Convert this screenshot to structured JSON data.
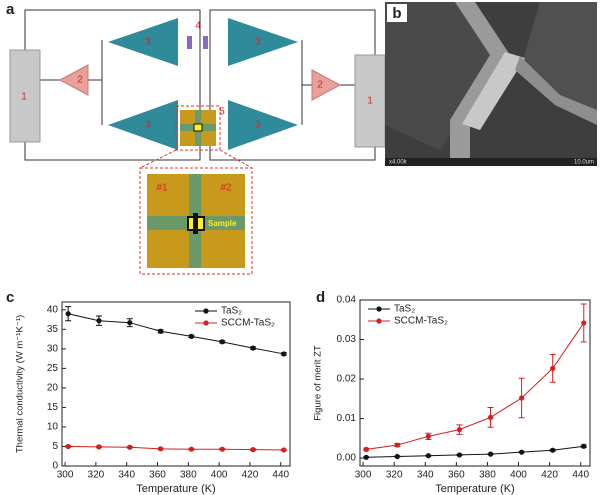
{
  "figure": {
    "panel_labels": [
      "a",
      "b",
      "c",
      "d"
    ],
    "diagram": {
      "labels": [
        "1",
        "2",
        "3",
        "4",
        "5",
        "#1",
        "#2",
        "Sample"
      ]
    },
    "micrograph": {
      "magnification": "x4.00k",
      "scale": "10.0um"
    }
  },
  "chart_data": [
    {
      "type": "line",
      "xlabel": "Temperature (K)",
      "ylabel": "Thermal conductivity (W m⁻¹K⁻¹)",
      "x": [
        302,
        322,
        342,
        362,
        382,
        402,
        422,
        442
      ],
      "xlim": [
        298,
        446
      ],
      "xticks": [
        300,
        320,
        340,
        360,
        380,
        400,
        420,
        440
      ],
      "ylim": [
        0,
        42
      ],
      "yticks": [
        0,
        5,
        10,
        15,
        20,
        25,
        30,
        35,
        40
      ],
      "legend": "upper right",
      "series": [
        {
          "name": "TaS₂",
          "color": "#111111",
          "values": [
            39.0,
            37.2,
            36.7,
            34.5,
            33.2,
            31.8,
            30.2,
            28.7
          ],
          "errors": [
            1.8,
            1.2,
            1.0,
            0.4,
            0.3,
            0.3,
            0.3,
            0.3
          ]
        },
        {
          "name": "SCCM-TaS₂",
          "color": "#d42020",
          "values": [
            5.0,
            4.9,
            4.8,
            4.4,
            4.3,
            4.3,
            4.2,
            4.1
          ],
          "errors": [
            0.2,
            0.2,
            0.2,
            0.2,
            0.2,
            0.2,
            0.2,
            0.2
          ]
        }
      ]
    },
    {
      "type": "line",
      "xlabel": "Temperature (K)",
      "ylabel": "Figure of merit ZT",
      "x": [
        302,
        322,
        342,
        362,
        382,
        402,
        422,
        442
      ],
      "xlim": [
        298,
        446
      ],
      "xticks": [
        300,
        320,
        340,
        360,
        380,
        400,
        420,
        440
      ],
      "ylim": [
        -0.002,
        0.04
      ],
      "yticks": [
        {
          "value": 0,
          "label": "0.00"
        },
        0.01,
        0.02,
        0.03,
        0.04
      ],
      "legend": "upper left",
      "series": [
        {
          "name": "TaS₂",
          "color": "#111111",
          "values": [
            0.0002,
            0.0004,
            0.0006,
            0.0008,
            0.001,
            0.0015,
            0.002,
            0.003
          ],
          "errors": [
            0.0001,
            0.0001,
            0.0001,
            0.0001,
            0.0001,
            0.0001,
            0.0002,
            0.0003
          ]
        },
        {
          "name": "SCCM-TaS₂",
          "color": "#d42020",
          "values": [
            0.0022,
            0.0033,
            0.0055,
            0.0072,
            0.0103,
            0.0152,
            0.0227,
            0.0342
          ],
          "errors": [
            0.0003,
            0.0004,
            0.0008,
            0.0012,
            0.0025,
            0.005,
            0.0035,
            0.0048
          ]
        }
      ]
    }
  ]
}
